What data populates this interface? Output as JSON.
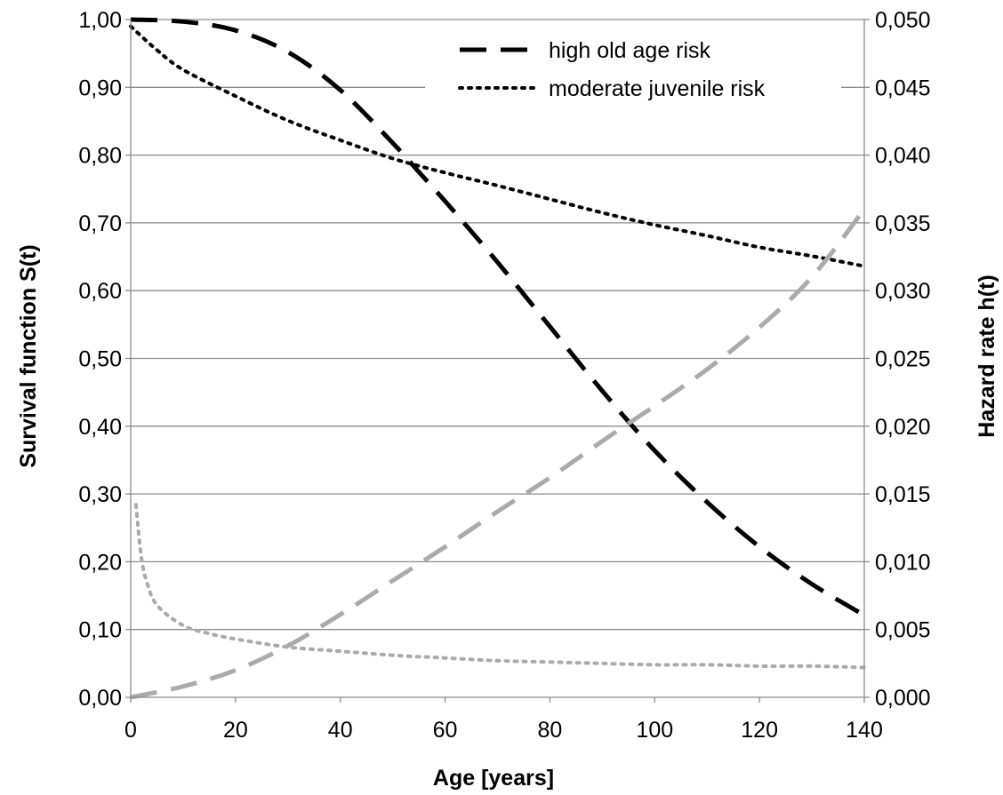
{
  "chart_data": {
    "type": "line",
    "xlabel": "Age [years]",
    "ylabel": "Survival function S(t)",
    "y2label": "Hazard rate h(t)",
    "xlim": [
      0,
      140
    ],
    "ylim": [
      0,
      1
    ],
    "y2lim": [
      0,
      0.05
    ],
    "x_ticks": [
      0,
      20,
      40,
      60,
      80,
      100,
      120,
      140
    ],
    "x_tick_labels": [
      "0",
      "20",
      "40",
      "60",
      "80",
      "100",
      "120",
      "140"
    ],
    "y_ticks": [
      0,
      0.1,
      0.2,
      0.3,
      0.4,
      0.5,
      0.6,
      0.7,
      0.8,
      0.9,
      1.0
    ],
    "y_tick_labels": [
      "0,00",
      "0,10",
      "0,20",
      "0,30",
      "0,40",
      "0,50",
      "0,60",
      "0,70",
      "0,80",
      "0,90",
      "1,00"
    ],
    "y2_ticks": [
      0,
      0.005,
      0.01,
      0.015,
      0.02,
      0.025,
      0.03,
      0.035,
      0.04,
      0.045,
      0.05
    ],
    "y2_tick_labels": [
      "0,000",
      "0,005",
      "0,010",
      "0,015",
      "0,020",
      "0,025",
      "0,030",
      "0,035",
      "0,040",
      "0,045",
      "0,050"
    ],
    "grid": "horizontal",
    "legend_position": "top-right",
    "series": [
      {
        "name": "high old age risk",
        "axis": "left",
        "color": "#000000",
        "dash": "long-dash",
        "x": [
          0,
          10,
          20,
          30,
          40,
          50,
          55,
          60,
          70,
          80,
          90,
          100,
          110,
          120,
          130,
          140
        ],
        "y": [
          1.0,
          0.997,
          0.984,
          0.952,
          0.896,
          0.818,
          0.775,
          0.732,
          0.642,
          0.547,
          0.452,
          0.364,
          0.288,
          0.222,
          0.167,
          0.121
        ]
      },
      {
        "name": "moderate juvenile risk",
        "axis": "left",
        "color": "#000000",
        "dash": "dotted",
        "x": [
          0,
          5,
          10,
          20,
          30,
          40,
          50,
          60,
          70,
          80,
          90,
          100,
          110,
          120,
          130,
          140
        ],
        "y": [
          0.99,
          0.955,
          0.926,
          0.887,
          0.851,
          0.822,
          0.795,
          0.774,
          0.755,
          0.735,
          0.715,
          0.697,
          0.681,
          0.664,
          0.651,
          0.636
        ]
      },
      {
        "axis": "right",
        "color": "#aaaaaa",
        "dash": "long-dash",
        "x": [
          0,
          10,
          20,
          30,
          40,
          50,
          60,
          70,
          80,
          90,
          100,
          110,
          120,
          130,
          140
        ],
        "y": [
          0.0,
          0.0008,
          0.002,
          0.0038,
          0.0061,
          0.0086,
          0.0111,
          0.0137,
          0.0162,
          0.0189,
          0.0215,
          0.0242,
          0.0273,
          0.031,
          0.036
        ]
      },
      {
        "axis": "right",
        "color": "#aaaaaa",
        "dash": "dotted",
        "x": [
          1,
          2,
          3,
          5,
          10,
          15,
          20,
          30,
          40,
          50,
          60,
          70,
          80,
          90,
          100,
          110,
          120,
          130,
          140
        ],
        "y": [
          0.0142,
          0.0104,
          0.0086,
          0.0068,
          0.0053,
          0.0047,
          0.0043,
          0.0037,
          0.0034,
          0.0031,
          0.0029,
          0.0027,
          0.0026,
          0.0025,
          0.0024,
          0.0024,
          0.0023,
          0.0023,
          0.0022
        ]
      }
    ]
  }
}
